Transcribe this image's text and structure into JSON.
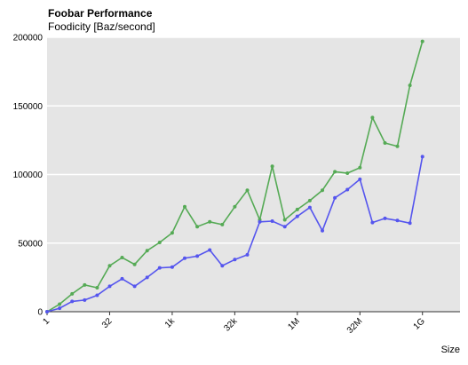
{
  "chart_data": {
    "type": "line",
    "title": "Foobar Performance",
    "subtitle": "Foodicity [Baz/second]",
    "xlabel": "Size",
    "ylabel": "",
    "x_scale": "log2",
    "x": [
      1,
      2,
      4,
      8,
      16,
      32,
      64,
      128,
      256,
      512,
      1024,
      2048,
      4096,
      8192,
      16384,
      32768,
      65536,
      131072,
      262144,
      524288,
      1048576,
      2097152,
      4194304,
      8388608,
      16777216,
      33554432,
      67108864,
      134217728,
      268435456,
      536870912,
      1073741824
    ],
    "x_ticks": [
      "1",
      "32",
      "1k",
      "32k",
      "1M",
      "32M",
      "1G"
    ],
    "x_tick_values": [
      1,
      32,
      1024,
      32768,
      1048576,
      33554432,
      1073741824
    ],
    "xlim_log2": [
      0,
      33
    ],
    "ylim": [
      0,
      200000
    ],
    "y_ticks": [
      "0",
      "50000",
      "100000",
      "150000",
      "200000"
    ],
    "y_tick_values": [
      0,
      50000,
      100000,
      150000,
      200000
    ],
    "grid": true,
    "series": [
      {
        "color": "#55aa55",
        "values": [
          0,
          5500,
          13000,
          19500,
          17500,
          33500,
          39500,
          34500,
          44500,
          50500,
          57500,
          76500,
          62000,
          65500,
          63500,
          76500,
          88500,
          67000,
          106000,
          67000,
          74500,
          81000,
          88500,
          102000,
          101000,
          105000,
          141500,
          123000,
          120500,
          165000,
          197000
        ]
      },
      {
        "color": "#5555ee",
        "values": [
          0,
          2500,
          7500,
          8500,
          12000,
          18500,
          24000,
          18500,
          25000,
          32000,
          32500,
          39000,
          40500,
          45000,
          33500,
          38000,
          41500,
          65500,
          66000,
          62000,
          69500,
          76000,
          59000,
          83000,
          89000,
          96500,
          65000,
          68000,
          66500,
          64500,
          113000
        ]
      }
    ]
  }
}
